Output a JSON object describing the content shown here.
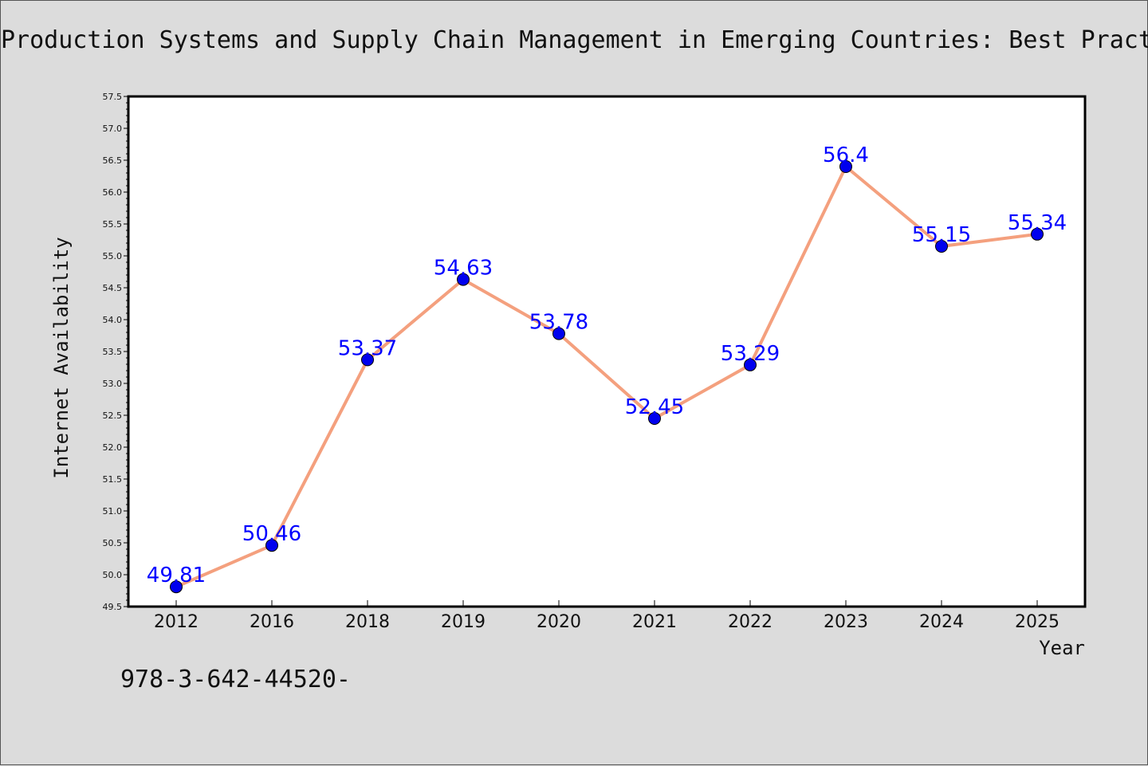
{
  "chart_data": {
    "type": "line",
    "title": "Production Systems and Supply Chain Management in Emerging Countries: Best Pract",
    "xlabel": "Year",
    "ylabel": "Internet Availability",
    "categories": [
      "2012",
      "2016",
      "2018",
      "2019",
      "2020",
      "2021",
      "2022",
      "2023",
      "2024",
      "2025"
    ],
    "series": [
      {
        "values": [
          49.81,
          50.46,
          53.37,
          54.63,
          53.78,
          52.45,
          53.29,
          56.4,
          55.15,
          55.34
        ],
        "labels": [
          "49.81",
          "50.46",
          "53.37",
          "54.63",
          "53.78",
          "52.45",
          "53.29",
          "56.4",
          "55.15",
          "55.34"
        ],
        "line_color": "#f4a07e",
        "marker_color": "#0000ee"
      }
    ],
    "ylim": [
      49.5,
      57.5
    ],
    "yticks": [
      "49.5",
      "50.0",
      "50.5",
      "51.0",
      "51.5",
      "52.0",
      "52.5",
      "53.0",
      "53.5",
      "54.0",
      "54.5",
      "55.0",
      "55.5",
      "56.0",
      "56.5",
      "57.0",
      "57.5"
    ],
    "grid": false,
    "legend": "none",
    "label_color": "#0000ff"
  },
  "footer_text": "978-3-642-44520-"
}
